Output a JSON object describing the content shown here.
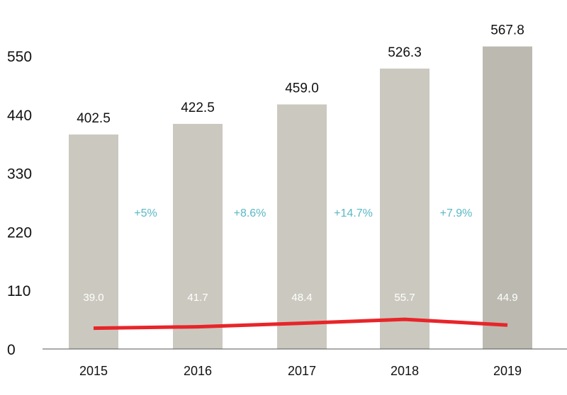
{
  "chart_data": {
    "type": "bar",
    "categories": [
      "2015",
      "2016",
      "2017",
      "2018",
      "2019"
    ],
    "series": [
      {
        "values": [
          402.5,
          422.5,
          459.0,
          526.3,
          567.8
        ],
        "color": "#cbc9bf",
        "last_color": "#bcbab0"
      },
      {
        "type": "line",
        "values": [
          39.0,
          41.7,
          48.4,
          55.7,
          44.9
        ],
        "color": "#e8252a"
      }
    ],
    "bar_labels": [
      "402.5",
      "422.5",
      "459.0",
      "526.3",
      "567.8"
    ],
    "line_labels": [
      "39.0",
      "41.7",
      "48.4",
      "55.7",
      "44.9"
    ],
    "growth_labels": [
      "+5%",
      "+8.6%",
      "+14.7%",
      "+7.9%"
    ],
    "yticks": [
      0,
      110,
      220,
      330,
      440,
      550
    ],
    "ylim": [
      0,
      600
    ],
    "title": "",
    "xlabel": "",
    "ylabel": "",
    "grid": false,
    "growth_color": "#5ab8c4",
    "axis_color": "#555555"
  }
}
